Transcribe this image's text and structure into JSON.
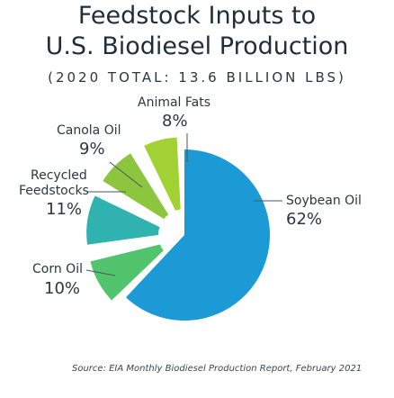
{
  "chart_data": {
    "type": "pie",
    "title_line1": "Feedstock Inputs to",
    "title_line2": "U.S. Biodiesel Production",
    "subtitle": "(2020 TOTAL: 13.6 BILLION LBS)",
    "slices": [
      {
        "label": "Soybean Oil",
        "value": 62,
        "pct_label": "62%",
        "color": "#1b9ad6"
      },
      {
        "label": "Corn Oil",
        "value": 10,
        "pct_label": "10%",
        "color": "#52c46e"
      },
      {
        "label": "Recycled",
        "label2": "Feedstocks",
        "value": 11,
        "pct_label": "11%",
        "color": "#2fb2b0"
      },
      {
        "label": "Canola Oil",
        "value": 9,
        "pct_label": "9%",
        "color": "#8cc63f"
      },
      {
        "label": "Animal Fats",
        "value": 8,
        "pct_label": "8%",
        "color": "#a2d133"
      }
    ],
    "source": "Source: EIA Monthly Biodiesel Production Report, February 2021"
  }
}
